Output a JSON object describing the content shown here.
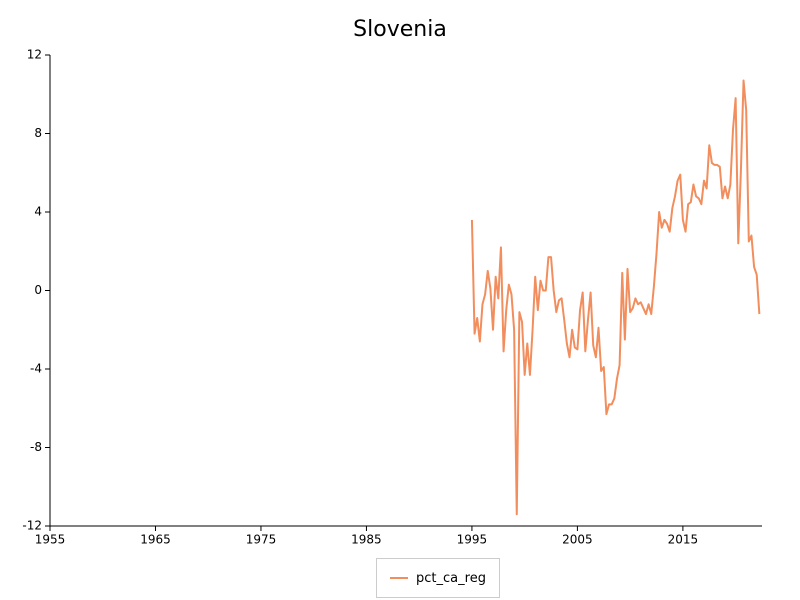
{
  "chart_data": {
    "type": "line",
    "title": "Slovenia",
    "xlim": [
      1955,
      2022.5
    ],
    "xticks": [
      1955,
      1965,
      1975,
      1985,
      1995,
      2005,
      2015
    ],
    "ylim": [
      -12,
      12
    ],
    "yticks": [
      -12,
      -8,
      -4,
      0,
      4,
      8,
      12
    ],
    "legend": "bottom",
    "x": [
      1995.0,
      1995.25,
      1995.5,
      1995.75,
      1996.0,
      1996.25,
      1996.5,
      1996.75,
      1997.0,
      1997.25,
      1997.5,
      1997.75,
      1998.0,
      1998.25,
      1998.5,
      1998.75,
      1999.0,
      1999.25,
      1999.5,
      1999.75,
      2000.0,
      2000.25,
      2000.5,
      2000.75,
      2001.0,
      2001.25,
      2001.5,
      2001.75,
      2002.0,
      2002.25,
      2002.5,
      2002.75,
      2003.0,
      2003.25,
      2003.5,
      2003.75,
      2004.0,
      2004.25,
      2004.5,
      2004.75,
      2005.0,
      2005.25,
      2005.5,
      2005.75,
      2006.0,
      2006.25,
      2006.5,
      2006.75,
      2007.0,
      2007.25,
      2007.5,
      2007.75,
      2008.0,
      2008.25,
      2008.5,
      2008.75,
      2009.0,
      2009.25,
      2009.5,
      2009.75,
      2010.0,
      2010.25,
      2010.5,
      2010.75,
      2011.0,
      2011.25,
      2011.5,
      2011.75,
      2012.0,
      2012.25,
      2012.5,
      2012.75,
      2013.0,
      2013.25,
      2013.5,
      2013.75,
      2014.0,
      2014.25,
      2014.5,
      2014.75,
      2015.0,
      2015.25,
      2015.5,
      2015.75,
      2016.0,
      2016.25,
      2016.5,
      2016.75,
      2017.0,
      2017.25,
      2017.5,
      2017.75,
      2018.0,
      2018.25,
      2018.5,
      2018.75,
      2019.0,
      2019.25,
      2019.5,
      2019.75,
      2020.0,
      2020.25,
      2020.5,
      2020.75,
      2021.0,
      2021.25,
      2021.5,
      2021.75,
      2022.0,
      2022.25
    ],
    "series": [
      {
        "name": "pct_ca_reg",
        "color": "#f28e5d",
        "values": [
          3.6,
          -2.2,
          -1.4,
          -2.6,
          -0.7,
          -0.2,
          1.0,
          0.1,
          -2.0,
          0.7,
          -0.4,
          2.2,
          -3.1,
          -1.0,
          0.3,
          -0.2,
          -2.0,
          -11.4,
          -1.1,
          -1.6,
          -4.3,
          -2.7,
          -4.3,
          -2.0,
          0.7,
          -1.0,
          0.5,
          0.0,
          0.0,
          1.7,
          1.7,
          0.0,
          -1.1,
          -0.5,
          -0.4,
          -1.5,
          -2.7,
          -3.4,
          -2.0,
          -2.9,
          -3.0,
          -1.0,
          -0.1,
          -3.1,
          -1.5,
          -0.1,
          -2.8,
          -3.4,
          -1.9,
          -4.1,
          -3.9,
          -6.3,
          -5.8,
          -5.8,
          -5.5,
          -4.5,
          -3.8,
          0.9,
          -2.5,
          1.1,
          -1.1,
          -0.9,
          -0.4,
          -0.7,
          -0.6,
          -0.9,
          -1.2,
          -0.7,
          -1.2,
          0.2,
          1.9,
          4.0,
          3.2,
          3.6,
          3.4,
          3.0,
          4.2,
          4.8,
          5.6,
          5.9,
          3.6,
          3.0,
          4.4,
          4.5,
          5.4,
          4.8,
          4.7,
          4.4,
          5.6,
          5.2,
          7.4,
          6.5,
          6.4,
          6.4,
          6.3,
          4.7,
          5.3,
          4.7,
          5.4,
          8.2,
          9.8,
          2.4,
          6.1,
          10.7,
          9.2,
          2.5,
          2.8,
          1.2,
          0.8,
          -1.2
        ]
      }
    ]
  }
}
